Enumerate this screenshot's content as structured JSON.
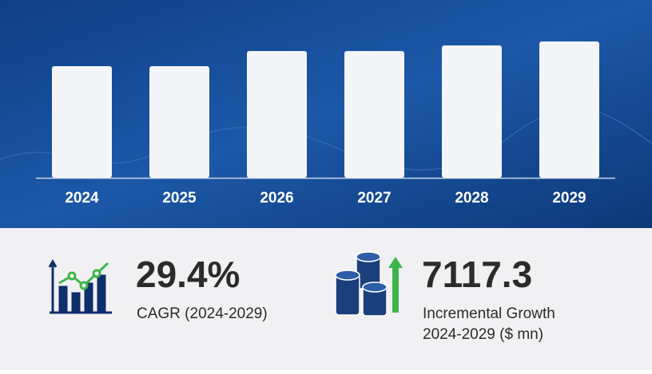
{
  "chart_data": {
    "type": "bar",
    "categories": [
      "2024",
      "2025",
      "2026",
      "2027",
      "2028",
      "2029"
    ],
    "values": [
      140,
      140,
      159,
      159,
      166,
      171
    ],
    "color": "#f4f5f8",
    "ylim": [
      0,
      180
    ]
  },
  "stats": {
    "cagr": {
      "value": "29.4%",
      "label": "CAGR (2024-2029)"
    },
    "growth": {
      "value": "7117.3",
      "label": "Incremental Growth",
      "sublabel": "2024-2029 ($ mn)"
    }
  }
}
